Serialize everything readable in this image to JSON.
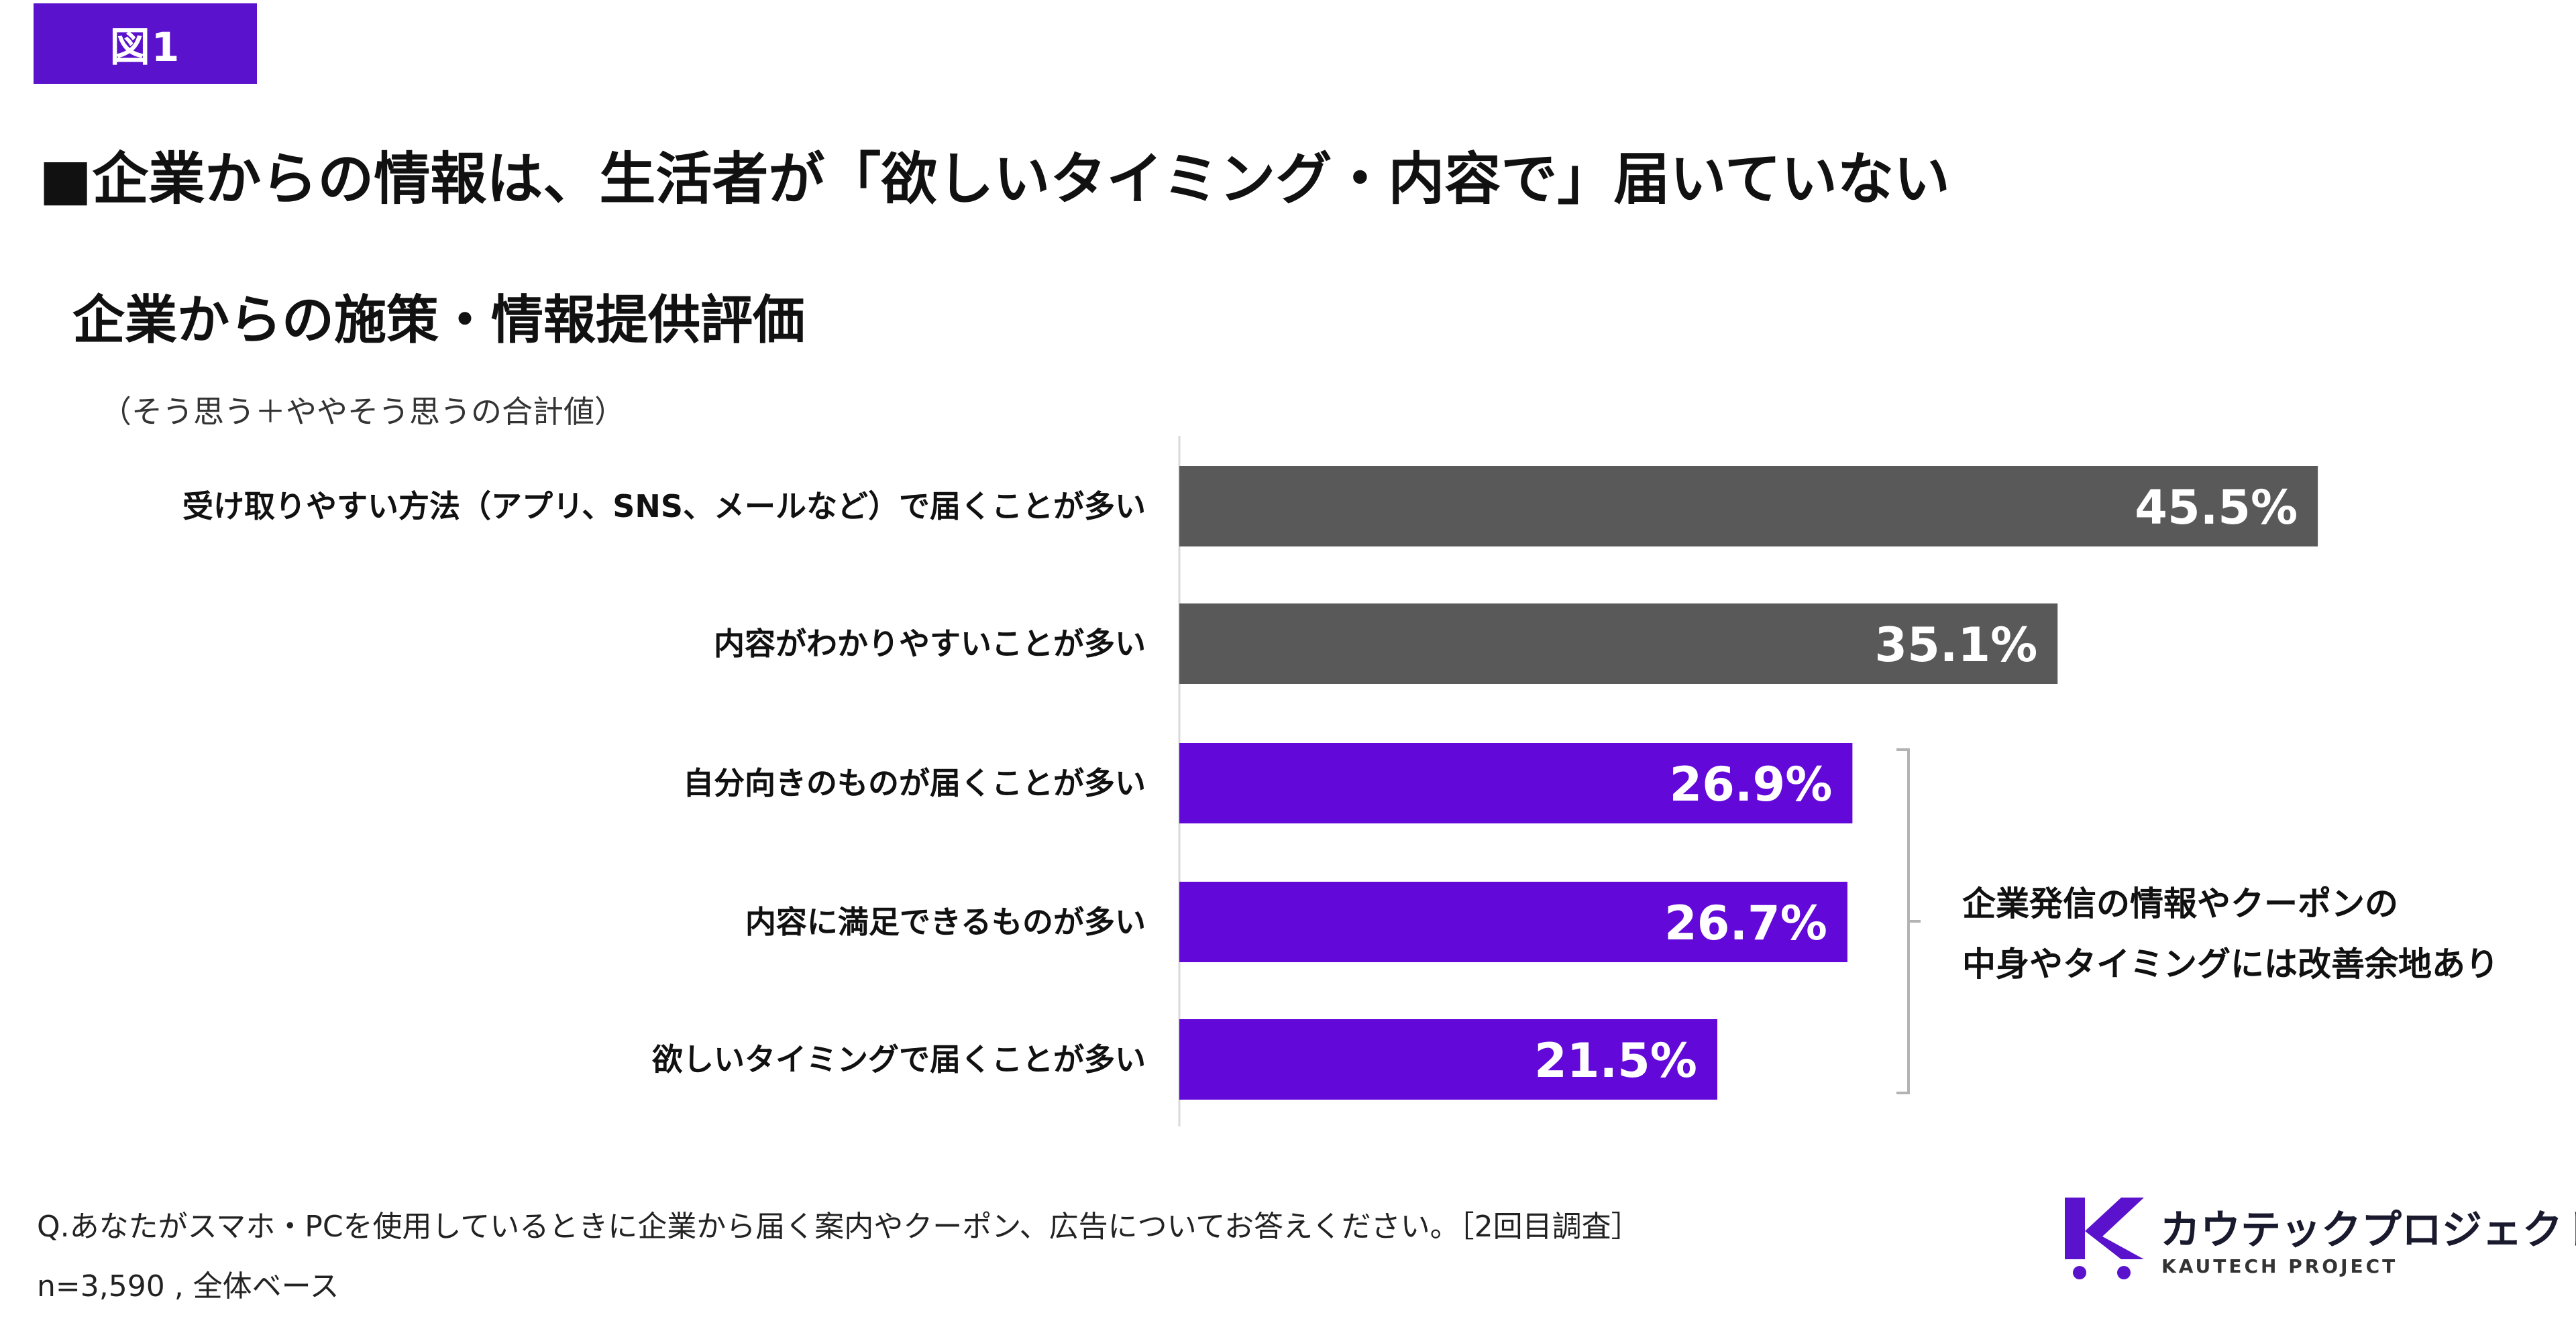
{
  "figure_label": "図1",
  "headline": "■企業からの情報は、生活者が「欲しいタイミング・内容で」届いていない",
  "chart_data": {
    "type": "bar",
    "orientation": "horizontal",
    "title": "企業からの施策・情報提供評価",
    "subtitle": "（そう思う＋ややそう思うの合計値）",
    "categories": [
      "受け取りやすい方法（アプリ、SNS、メールなど）で届くことが多い",
      "内容がわかりやすいことが多い",
      "自分向きのものが届くことが多い",
      "内容に満足できるものが多い",
      "欲しいタイミングで届くことが多い"
    ],
    "values": [
      45.5,
      35.1,
      26.9,
      26.7,
      21.5
    ],
    "value_labels": [
      "45.5%",
      "35.1%",
      "26.9%",
      "26.7%",
      "21.5%"
    ],
    "bar_colors": [
      "#595959",
      "#595959",
      "#6208d8",
      "#6208d8",
      "#6208d8"
    ],
    "xlim": [
      0,
      55
    ],
    "grid": false,
    "legend": "none",
    "annotation": {
      "lines": [
        "企業発信の情報やクーポンの",
        "中身やタイミングには改善余地あり"
      ],
      "applies_to": [
        2,
        3,
        4
      ]
    }
  },
  "footer": {
    "question": "Q.あなたがスマホ・PCを使用しているときに企業から届く案内やクーポン、広告についてお答えください。［2回目調査］",
    "base": "n=3,590 , 全体ベース"
  },
  "logo": {
    "name": "カウテックプロジェクト",
    "sub": "KAUTECH PROJECT",
    "color": "#5a12cc"
  }
}
